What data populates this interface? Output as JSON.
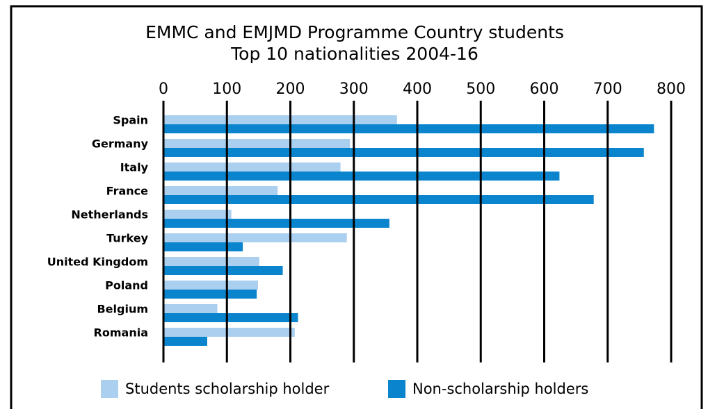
{
  "chart_data": {
    "type": "bar",
    "orientation": "horizontal",
    "title": "EMMC and EMJMD Programme Country students",
    "subtitle": "Top 10 nationalities 2004-16",
    "categories": [
      "Spain",
      "Germany",
      "Italy",
      "France",
      "Netherlands",
      "Turkey",
      "United Kingdom",
      "Poland",
      "Belgium",
      "Romania"
    ],
    "series": [
      {
        "name": "Students scholarship holder",
        "color": "#abcfef",
        "values": [
          368,
          294,
          279,
          180,
          107,
          289,
          151,
          149,
          85,
          207
        ]
      },
      {
        "name": "Non-scholarship holders",
        "color": "#0a84cc",
        "values": [
          773,
          757,
          624,
          678,
          356,
          125,
          188,
          147,
          212,
          69
        ]
      }
    ],
    "xlim": [
      0,
      800
    ],
    "xticks": [
      0,
      100,
      200,
      300,
      400,
      500,
      600,
      700,
      800
    ],
    "grid": true,
    "legend": "bottom"
  }
}
